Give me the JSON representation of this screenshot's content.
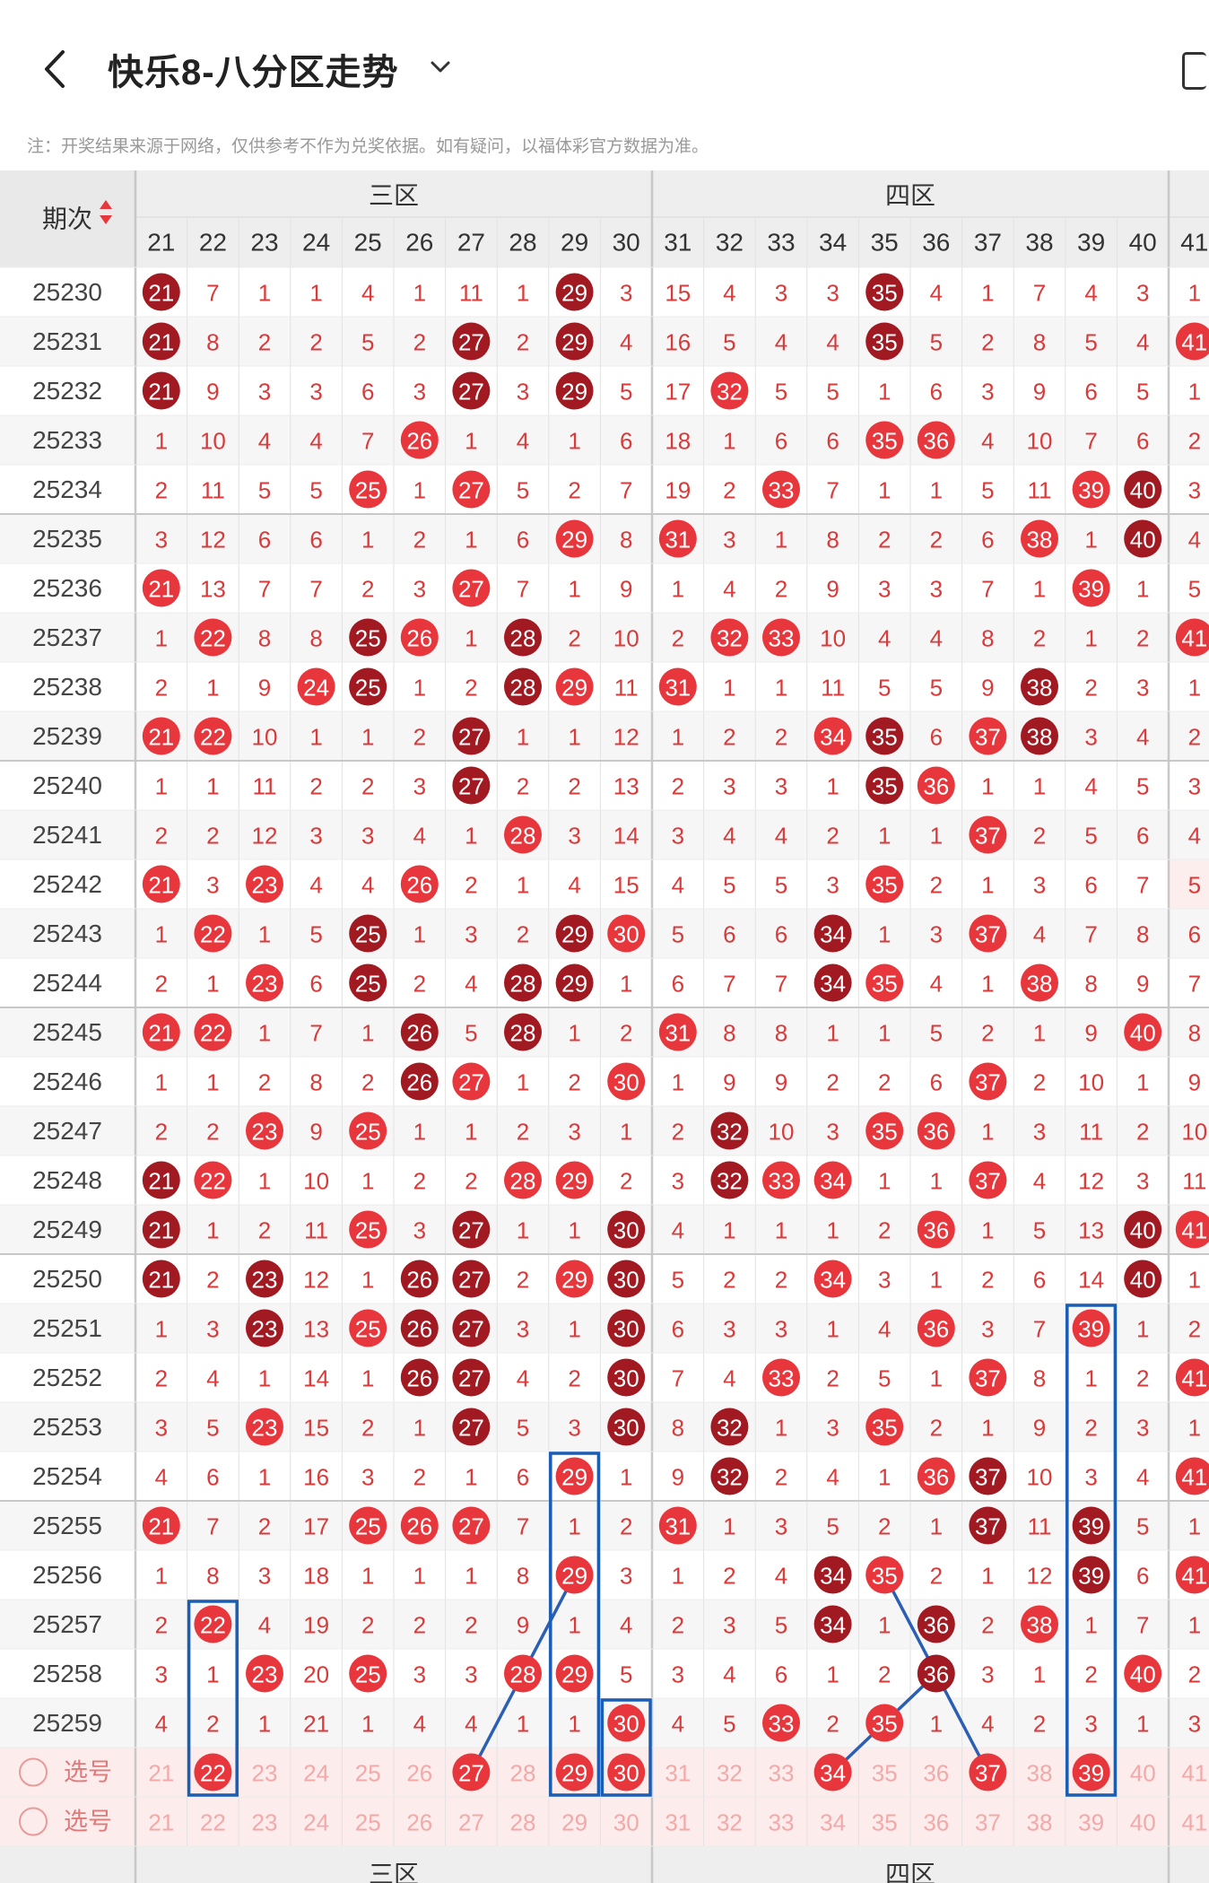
{
  "header": {
    "title": "快乐8-八分区走势"
  },
  "notice": "注：开奖结果来源于网络，仅供参考不作为兑奖依据。如有疑问，以福体彩官方数据为准。",
  "table": {
    "period_label": "期次",
    "zones": [
      "三区",
      "四区"
    ],
    "columns": [
      21,
      22,
      23,
      24,
      25,
      26,
      27,
      28,
      29,
      30,
      31,
      32,
      33,
      34,
      35,
      36,
      37,
      38,
      39,
      40,
      41
    ],
    "rows": [
      {
        "period": "25230",
        "cells": [
          "21",
          "7",
          "1",
          "1",
          "4",
          "1",
          "11",
          "1",
          "29",
          "3",
          "15",
          "4",
          "3",
          "3",
          "35",
          "4",
          "1",
          "7",
          "4",
          "3",
          "1"
        ]
      },
      {
        "period": "25231",
        "cells": [
          "21",
          "8",
          "2",
          "2",
          "5",
          "2",
          "27",
          "2",
          "29",
          "4",
          "16",
          "5",
          "4",
          "4",
          "35",
          "5",
          "2",
          "8",
          "5",
          "4",
          "41"
        ]
      },
      {
        "period": "25232",
        "cells": [
          "21",
          "9",
          "3",
          "3",
          "6",
          "3",
          "27",
          "3",
          "29",
          "5",
          "17",
          "32",
          "5",
          "5",
          "1",
          "6",
          "3",
          "9",
          "6",
          "5",
          "1"
        ]
      },
      {
        "period": "25233",
        "cells": [
          "1",
          "10",
          "4",
          "4",
          "7",
          "26",
          "1",
          "4",
          "1",
          "6",
          "18",
          "1",
          "6",
          "6",
          "35",
          "36",
          "4",
          "10",
          "7",
          "6",
          "2"
        ]
      },
      {
        "period": "25234",
        "cells": [
          "2",
          "11",
          "5",
          "5",
          "25",
          "1",
          "27",
          "5",
          "2",
          "7",
          "19",
          "2",
          "33",
          "7",
          "1",
          "1",
          "5",
          "11",
          "39",
          "40",
          "3"
        ]
      },
      {
        "period": "25235",
        "cells": [
          "3",
          "12",
          "6",
          "6",
          "1",
          "2",
          "1",
          "6",
          "29",
          "8",
          "31",
          "3",
          "1",
          "8",
          "2",
          "2",
          "6",
          "38",
          "1",
          "40",
          "4"
        ]
      },
      {
        "period": "25236",
        "cells": [
          "21",
          "13",
          "7",
          "7",
          "2",
          "3",
          "27",
          "7",
          "1",
          "9",
          "1",
          "4",
          "2",
          "9",
          "3",
          "3",
          "7",
          "1",
          "39",
          "1",
          "5"
        ]
      },
      {
        "period": "25237",
        "cells": [
          "1",
          "22",
          "8",
          "8",
          "25",
          "26",
          "1",
          "28",
          "2",
          "10",
          "2",
          "32",
          "33",
          "10",
          "4",
          "4",
          "8",
          "2",
          "1",
          "2",
          "41"
        ]
      },
      {
        "period": "25238",
        "cells": [
          "2",
          "1",
          "9",
          "24",
          "25",
          "1",
          "2",
          "28",
          "29",
          "11",
          "31",
          "1",
          "1",
          "11",
          "5",
          "5",
          "9",
          "38",
          "2",
          "3",
          "1"
        ]
      },
      {
        "period": "25239",
        "cells": [
          "21",
          "22",
          "10",
          "1",
          "1",
          "2",
          "27",
          "1",
          "1",
          "12",
          "1",
          "2",
          "2",
          "34",
          "35",
          "6",
          "37",
          "38",
          "3",
          "4",
          "2"
        ]
      },
      {
        "period": "25240",
        "cells": [
          "1",
          "1",
          "11",
          "2",
          "2",
          "3",
          "27",
          "2",
          "2",
          "13",
          "2",
          "3",
          "3",
          "1",
          "35",
          "36",
          "1",
          "1",
          "4",
          "5",
          "3"
        ]
      },
      {
        "period": "25241",
        "cells": [
          "2",
          "2",
          "12",
          "3",
          "3",
          "4",
          "1",
          "28",
          "3",
          "14",
          "3",
          "4",
          "4",
          "2",
          "1",
          "1",
          "37",
          "2",
          "5",
          "6",
          "4"
        ]
      },
      {
        "period": "25242",
        "cells": [
          "21",
          "3",
          "23",
          "4",
          "4",
          "26",
          "2",
          "1",
          "4",
          "15",
          "4",
          "5",
          "5",
          "3",
          "35",
          "2",
          "1",
          "3",
          "6",
          "7",
          "5"
        ]
      },
      {
        "period": "25243",
        "cells": [
          "1",
          "22",
          "1",
          "5",
          "25",
          "1",
          "3",
          "2",
          "29",
          "30",
          "5",
          "6",
          "6",
          "34",
          "1",
          "3",
          "37",
          "4",
          "7",
          "8",
          "6"
        ]
      },
      {
        "period": "25244",
        "cells": [
          "2",
          "1",
          "23",
          "6",
          "25",
          "2",
          "4",
          "28",
          "29",
          "1",
          "6",
          "7",
          "7",
          "34",
          "35",
          "4",
          "1",
          "38",
          "8",
          "9",
          "7"
        ]
      },
      {
        "period": "25245",
        "cells": [
          "21",
          "22",
          "1",
          "7",
          "1",
          "26",
          "5",
          "28",
          "1",
          "2",
          "31",
          "8",
          "8",
          "1",
          "1",
          "5",
          "2",
          "1",
          "9",
          "40",
          "8"
        ]
      },
      {
        "period": "25246",
        "cells": [
          "1",
          "1",
          "2",
          "8",
          "2",
          "26",
          "27",
          "1",
          "2",
          "30",
          "1",
          "9",
          "9",
          "2",
          "2",
          "6",
          "37",
          "2",
          "10",
          "1",
          "9"
        ]
      },
      {
        "period": "25247",
        "cells": [
          "2",
          "2",
          "23",
          "9",
          "25",
          "1",
          "1",
          "2",
          "3",
          "1",
          "2",
          "32",
          "10",
          "3",
          "35",
          "36",
          "1",
          "3",
          "11",
          "2",
          "10"
        ]
      },
      {
        "period": "25248",
        "cells": [
          "21",
          "22",
          "1",
          "10",
          "1",
          "2",
          "2",
          "28",
          "29",
          "2",
          "3",
          "32",
          "33",
          "34",
          "1",
          "1",
          "37",
          "4",
          "12",
          "3",
          "11"
        ]
      },
      {
        "period": "25249",
        "cells": [
          "21",
          "1",
          "2",
          "11",
          "25",
          "3",
          "27",
          "1",
          "1",
          "30",
          "4",
          "1",
          "1",
          "1",
          "2",
          "36",
          "1",
          "5",
          "13",
          "40",
          "41"
        ]
      },
      {
        "period": "25250",
        "cells": [
          "21",
          "2",
          "23",
          "12",
          "1",
          "26",
          "27",
          "2",
          "29",
          "30",
          "5",
          "2",
          "2",
          "34",
          "3",
          "1",
          "2",
          "6",
          "14",
          "40",
          "1"
        ]
      },
      {
        "period": "25251",
        "cells": [
          "1",
          "3",
          "23",
          "13",
          "25",
          "26",
          "27",
          "3",
          "1",
          "30",
          "6",
          "3",
          "3",
          "1",
          "4",
          "36",
          "3",
          "7",
          "39",
          "1",
          "2"
        ]
      },
      {
        "period": "25252",
        "cells": [
          "2",
          "4",
          "1",
          "14",
          "1",
          "26",
          "27",
          "4",
          "2",
          "30",
          "7",
          "4",
          "33",
          "2",
          "5",
          "1",
          "37",
          "8",
          "1",
          "2",
          "41"
        ]
      },
      {
        "period": "25253",
        "cells": [
          "3",
          "5",
          "23",
          "15",
          "2",
          "1",
          "27",
          "5",
          "3",
          "30",
          "8",
          "32",
          "1",
          "3",
          "35",
          "2",
          "1",
          "9",
          "2",
          "3",
          "1"
        ]
      },
      {
        "period": "25254",
        "cells": [
          "4",
          "6",
          "1",
          "16",
          "3",
          "2",
          "1",
          "6",
          "29",
          "1",
          "9",
          "32",
          "2",
          "4",
          "1",
          "36",
          "37",
          "10",
          "3",
          "4",
          "41"
        ]
      },
      {
        "period": "25255",
        "cells": [
          "21",
          "7",
          "2",
          "17",
          "25",
          "26",
          "27",
          "7",
          "1",
          "2",
          "31",
          "1",
          "3",
          "5",
          "2",
          "1",
          "37",
          "11",
          "39",
          "5",
          "1"
        ]
      },
      {
        "period": "25256",
        "cells": [
          "1",
          "8",
          "3",
          "18",
          "1",
          "1",
          "1",
          "8",
          "29",
          "3",
          "1",
          "2",
          "4",
          "34",
          "35",
          "2",
          "1",
          "12",
          "39",
          "6",
          "41"
        ]
      },
      {
        "period": "25257",
        "cells": [
          "2",
          "22",
          "4",
          "19",
          "2",
          "2",
          "2",
          "9",
          "1",
          "4",
          "2",
          "3",
          "5",
          "34",
          "1",
          "36",
          "2",
          "38",
          "1",
          "7",
          "1"
        ]
      },
      {
        "period": "25258",
        "cells": [
          "3",
          "1",
          "23",
          "20",
          "25",
          "3",
          "3",
          "28",
          "29",
          "5",
          "3",
          "4",
          "6",
          "1",
          "2",
          "36",
          "3",
          "1",
          "2",
          "40",
          "2"
        ]
      },
      {
        "period": "25259",
        "cells": [
          "4",
          "2",
          "1",
          "21",
          "1",
          "4",
          "4",
          "1",
          "1",
          "30",
          "4",
          "5",
          "33",
          "2",
          "35",
          "1",
          "4",
          "2",
          "3",
          "1",
          "3"
        ]
      }
    ],
    "select_label": "选号",
    "select_rows": [
      {
        "label": "选号",
        "picked": [
          "22",
          "27",
          "29",
          "30",
          "34",
          "37",
          "39"
        ]
      },
      {
        "label": "选号",
        "picked": []
      }
    ]
  },
  "colors": {
    "ball": "#e8373c",
    "ball_dark": "#a11a22",
    "miss_text": "#d93a3a",
    "link_line": "#2a5fb3",
    "box": "#1a5db5",
    "zone_bg": "#eeeeee",
    "select_bg": "#fdecec"
  }
}
